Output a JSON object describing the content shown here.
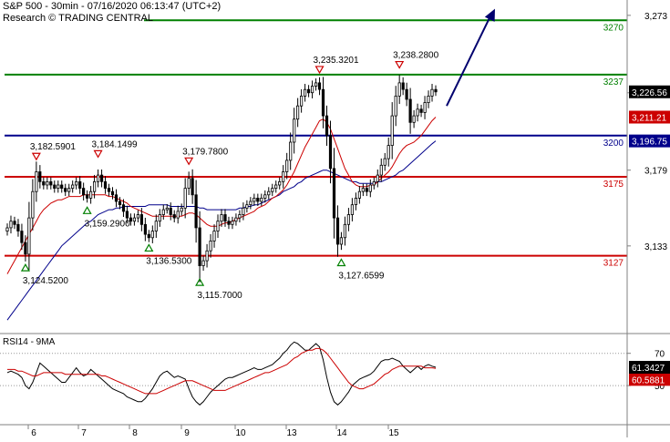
{
  "header": {
    "title": "S&P 500 - 30min - 07/16/2020 06:13:47 (UTC+2)",
    "research": "Research © TRADING CENTRAL"
  },
  "colors": {
    "resistance": "#008000",
    "pivot": "#00008b",
    "support": "#cc0000",
    "price": "#000000",
    "ma_fast": "#cc0000",
    "ma_slow": "#00008b",
    "arrow": "#00006e",
    "last_tag": "#000000",
    "red_tag": "#cc0000",
    "blue_tag": "#00008b"
  },
  "chart_data": [
    {
      "type": "candlestick",
      "title": "S&P 500 - 30min - 07/16/2020 06:13:47 (UTC+2)",
      "x_labels": [
        "6",
        "7",
        "8",
        "9",
        "10",
        "13",
        "14",
        "15"
      ],
      "y_ticks": [
        3133,
        3179,
        3226,
        3273
      ],
      "y_tick_labels": [
        "3,133",
        "3,179",
        "3,226",
        "3,273"
      ],
      "ylim": [
        3082,
        3279
      ],
      "levels": [
        {
          "label": "3270",
          "value": 3270,
          "kind": "resistance"
        },
        {
          "label": "3237",
          "value": 3237,
          "kind": "resistance"
        },
        {
          "label": "3200",
          "value": 3200,
          "kind": "pivot"
        },
        {
          "label": "3175",
          "value": 3175,
          "kind": "support"
        },
        {
          "label": "3127",
          "value": 3127,
          "kind": "support"
        }
      ],
      "price_tags": [
        {
          "label": "3,226.56",
          "value": 3226.56,
          "kind": "last"
        },
        {
          "label": "3,211.21",
          "value": 3211.21,
          "kind": "ma_fast"
        },
        {
          "label": "3,196.75",
          "value": 3196.75,
          "kind": "ma_slow"
        }
      ],
      "annotations": [
        {
          "label": "3,182.5901",
          "value": 3182.5901,
          "type": "high",
          "idx": 8
        },
        {
          "label": "3,184.1499",
          "value": 3184.1499,
          "type": "high",
          "idx": 25
        },
        {
          "label": "3,179.7800",
          "value": 3179.78,
          "type": "high",
          "idx": 50
        },
        {
          "label": "3,235.3201",
          "value": 3235.3201,
          "type": "high",
          "idx": 86
        },
        {
          "label": "3,238.2800",
          "value": 3238.28,
          "type": "high",
          "idx": 108
        },
        {
          "label": "3,124.5200",
          "value": 3124.52,
          "type": "low",
          "idx": 5
        },
        {
          "label": "3,159.2900",
          "value": 3159.29,
          "type": "low",
          "idx": 22
        },
        {
          "label": "3,136.5300",
          "value": 3136.53,
          "type": "low",
          "idx": 39
        },
        {
          "label": "3,115.7000",
          "value": 3115.7,
          "type": "low",
          "idx": 53
        },
        {
          "label": "3,127.6599",
          "value": 3127.6599,
          "type": "low",
          "idx": 92
        }
      ],
      "projection": {
        "from": 3218,
        "to": 3277
      },
      "close": [
        3144,
        3148,
        3146,
        3142,
        3135,
        3128,
        3150,
        3166,
        3178,
        3172,
        3170,
        3172,
        3170,
        3168,
        3170,
        3168,
        3166,
        3168,
        3170,
        3172,
        3168,
        3164,
        3162,
        3166,
        3172,
        3176,
        3172,
        3168,
        3166,
        3164,
        3160,
        3158,
        3154,
        3150,
        3148,
        3150,
        3152,
        3146,
        3140,
        3138,
        3142,
        3148,
        3152,
        3155,
        3156,
        3152,
        3150,
        3154,
        3156,
        3168,
        3174,
        3164,
        3144,
        3121,
        3124,
        3130,
        3136,
        3142,
        3148,
        3152,
        3148,
        3146,
        3148,
        3150,
        3152,
        3156,
        3158,
        3160,
        3162,
        3160,
        3162,
        3164,
        3166,
        3168,
        3170,
        3172,
        3178,
        3185,
        3196,
        3210,
        3218,
        3224,
        3228,
        3226,
        3230,
        3232,
        3228,
        3212,
        3200,
        3180,
        3150,
        3134,
        3138,
        3146,
        3152,
        3158,
        3162,
        3166,
        3168,
        3166,
        3170,
        3172,
        3176,
        3182,
        3186,
        3194,
        3212,
        3224,
        3232,
        3228,
        3222,
        3208,
        3212,
        3216,
        3214,
        3220,
        3224,
        3228,
        3226.56
      ],
      "ma_fast": [
        3116,
        3120,
        3124,
        3128,
        3132,
        3136,
        3140,
        3144,
        3148,
        3152,
        3155,
        3157,
        3159,
        3160,
        3161,
        3161,
        3162,
        3163,
        3163,
        3163,
        3163,
        3164,
        3164,
        3164,
        3164,
        3164,
        3164,
        3164,
        3163,
        3163,
        3162,
        3161,
        3160,
        3159,
        3157,
        3156,
        3155,
        3154,
        3153,
        3152,
        3151,
        3151,
        3151,
        3151,
        3151,
        3151,
        3151,
        3151,
        3151,
        3152,
        3153,
        3153,
        3152,
        3150,
        3148,
        3146,
        3145,
        3145,
        3145,
        3146,
        3147,
        3147,
        3148,
        3149,
        3150,
        3151,
        3152,
        3153,
        3154,
        3156,
        3157,
        3158,
        3160,
        3162,
        3163,
        3165,
        3167,
        3170,
        3174,
        3178,
        3183,
        3188,
        3193,
        3197,
        3201,
        3205,
        3209,
        3210,
        3208,
        3204,
        3198,
        3192,
        3186,
        3180,
        3176,
        3172,
        3170,
        3169,
        3169,
        3169,
        3170,
        3170,
        3172,
        3174,
        3176,
        3178,
        3181,
        3185,
        3189,
        3192,
        3194,
        3195,
        3196,
        3198,
        3200,
        3203,
        3206,
        3209,
        3211.21
      ],
      "ma_slow": [
        3088,
        3091,
        3094,
        3097,
        3100,
        3103,
        3106,
        3109,
        3112,
        3115,
        3118,
        3121,
        3124,
        3127,
        3130,
        3133,
        3135,
        3137,
        3139,
        3141,
        3143,
        3145,
        3147,
        3148,
        3150,
        3152,
        3153,
        3154,
        3155,
        3155,
        3156,
        3156,
        3157,
        3157,
        3157,
        3157,
        3157,
        3157,
        3157,
        3158,
        3158,
        3158,
        3158,
        3158,
        3158,
        3157,
        3157,
        3157,
        3157,
        3157,
        3157,
        3157,
        3157,
        3156,
        3156,
        3155,
        3155,
        3155,
        3155,
        3155,
        3155,
        3155,
        3155,
        3155,
        3156,
        3156,
        3157,
        3157,
        3158,
        3158,
        3159,
        3160,
        3161,
        3162,
        3163,
        3164,
        3166,
        3167,
        3168,
        3169,
        3171,
        3172,
        3174,
        3175,
        3176,
        3177,
        3178,
        3179,
        3179,
        3178,
        3177,
        3176,
        3175,
        3174,
        3173,
        3172,
        3172,
        3171,
        3171,
        3171,
        3171,
        3171,
        3172,
        3172,
        3173,
        3174,
        3175,
        3176,
        3178,
        3179,
        3181,
        3183,
        3185,
        3187,
        3189,
        3191,
        3193,
        3195,
        3196.75
      ]
    },
    {
      "type": "line",
      "title": "RSI14 - 9MA",
      "x_labels": [
        "6",
        "7",
        "8",
        "9",
        "10",
        "13",
        "14",
        "15"
      ],
      "y_ticks": [
        70,
        50
      ],
      "y_tick_labels": [
        "70",
        "50"
      ],
      "ylim": [
        28,
        80
      ],
      "reference_lines": [
        70,
        50
      ],
      "series": [
        {
          "name": "RSI14",
          "last_label": "61.3427",
          "values": [
            58,
            59,
            58,
            57,
            55,
            50,
            48,
            52,
            58,
            64,
            62,
            60,
            58,
            56,
            54,
            52,
            52,
            55,
            58,
            61,
            58,
            56,
            57,
            60,
            58,
            56,
            54,
            52,
            50,
            48,
            47,
            46,
            45,
            43,
            42,
            41,
            40,
            40,
            42,
            45,
            48,
            52,
            56,
            58,
            59,
            57,
            55,
            56,
            55,
            54,
            48,
            43,
            40,
            38,
            40,
            43,
            46,
            48,
            50,
            52,
            54,
            55,
            55,
            56,
            57,
            58,
            59,
            60,
            61,
            60,
            60,
            61,
            62,
            63,
            65,
            67,
            70,
            72,
            75,
            77,
            76,
            74,
            72,
            72,
            74,
            76,
            74,
            66,
            55,
            46,
            40,
            38,
            40,
            43,
            46,
            50,
            52,
            54,
            55,
            56,
            57,
            59,
            62,
            65,
            66,
            66,
            67,
            66,
            65,
            62,
            60,
            58,
            60,
            62,
            60,
            62,
            63,
            62,
            61.34
          ]
        },
        {
          "name": "9MA",
          "last_label": "60.5881",
          "values": [
            60,
            60,
            60,
            59,
            59,
            58,
            57,
            56,
            56,
            57,
            58,
            58,
            58,
            58,
            58,
            58,
            57,
            57,
            57,
            57,
            57,
            57,
            57,
            57,
            57,
            57,
            56,
            56,
            55,
            54,
            53,
            52,
            51,
            50,
            49,
            48,
            47,
            46,
            45,
            45,
            45,
            45,
            46,
            47,
            48,
            49,
            50,
            51,
            52,
            53,
            53,
            53,
            52,
            51,
            50,
            49,
            48,
            47,
            47,
            47,
            47,
            48,
            49,
            50,
            51,
            52,
            53,
            54,
            55,
            56,
            57,
            58,
            58,
            59,
            60,
            61,
            62,
            63,
            65,
            67,
            68,
            70,
            71,
            72,
            72,
            73,
            73,
            72,
            70,
            67,
            64,
            61,
            58,
            55,
            52,
            50,
            49,
            48,
            48,
            49,
            50,
            51,
            53,
            55,
            57,
            58,
            60,
            61,
            62,
            62,
            62,
            62,
            62,
            62,
            62,
            61,
            61,
            61,
            60.59
          ]
        }
      ]
    }
  ]
}
